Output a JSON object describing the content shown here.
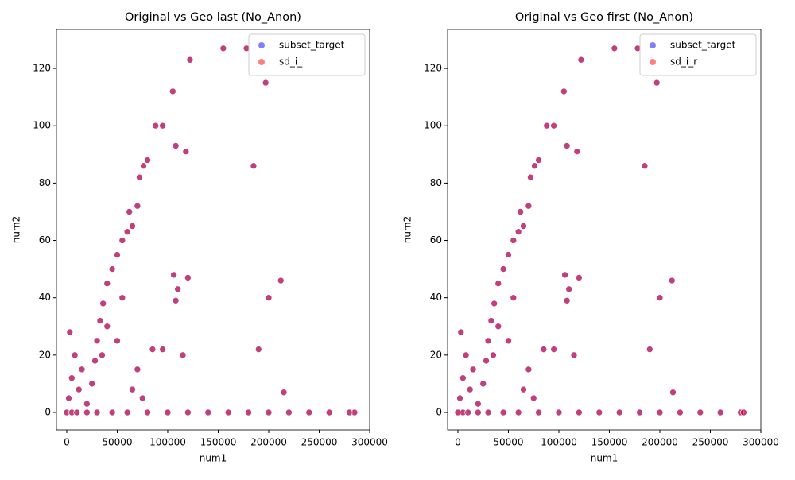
{
  "chart_data": [
    {
      "type": "scatter",
      "title": "Original vs Geo last (No_Anon)",
      "x_label": "num1",
      "y_label": "num2",
      "xlim": [
        -10200,
        300000
      ],
      "ylim": [
        -6.1,
        133.6
      ],
      "xticks": [
        0,
        50000,
        100000,
        150000,
        200000,
        250000,
        300000
      ],
      "yticks": [
        0,
        20,
        40,
        60,
        80,
        100,
        120
      ],
      "legend": "upper right",
      "series": [
        {
          "name": "subset_target",
          "color": "#0000ff",
          "x": [
            0,
            5000,
            10000,
            20000,
            30000,
            45000,
            60000,
            80000,
            100000,
            120000,
            140000,
            160000,
            180000,
            200000,
            220000,
            240000,
            260000,
            280000,
            285000,
            2000,
            5000,
            8000,
            3000,
            12000,
            15000,
            20000,
            25000,
            28000,
            30000,
            33000,
            36000,
            40000,
            45000,
            50000,
            55000,
            60000,
            65000,
            62000,
            70000,
            72000,
            76000,
            80000,
            88000,
            95000,
            105000,
            108000,
            118000,
            122000,
            155000,
            178000,
            197000,
            185000,
            106000,
            110000,
            120000,
            108000,
            212000,
            200000,
            190000,
            215000,
            85000,
            95000,
            115000,
            65000,
            70000,
            75000,
            40000,
            35000,
            50000,
            55000
          ],
          "values": [
            0,
            0,
            0,
            0,
            0,
            0,
            0,
            0,
            0,
            0,
            0,
            0,
            0,
            0,
            0,
            0,
            0,
            0,
            0,
            5,
            12,
            20,
            28,
            8,
            15,
            3,
            10,
            18,
            25,
            32,
            38,
            45,
            50,
            55,
            60,
            63,
            65,
            70,
            72,
            82,
            86,
            88,
            100,
            100,
            112,
            93,
            91,
            123,
            127,
            127,
            115,
            86,
            48,
            43,
            47,
            39,
            46,
            40,
            22,
            7,
            22,
            22,
            20,
            8,
            15,
            5,
            30,
            20,
            25,
            40
          ]
        },
        {
          "name": "sd_i_",
          "color": "#ff0000",
          "x": [
            0,
            5000,
            10000,
            20000,
            30000,
            45000,
            60000,
            80000,
            100000,
            120000,
            140000,
            160000,
            180000,
            200000,
            220000,
            240000,
            260000,
            280000,
            285000,
            2000,
            5000,
            8000,
            3000,
            12000,
            15000,
            20000,
            25000,
            28000,
            30000,
            33000,
            36000,
            40000,
            45000,
            50000,
            55000,
            60000,
            65000,
            62000,
            70000,
            72000,
            76000,
            80000,
            88000,
            95000,
            105000,
            108000,
            118000,
            122000,
            155000,
            178000,
            197000,
            185000,
            106000,
            110000,
            120000,
            108000,
            212000,
            200000,
            190000,
            215000,
            85000,
            95000,
            115000,
            65000,
            70000,
            75000,
            40000,
            35000,
            50000,
            55000
          ],
          "values": [
            0,
            0,
            0,
            0,
            0,
            0,
            0,
            0,
            0,
            0,
            0,
            0,
            0,
            0,
            0,
            0,
            0,
            0,
            0,
            5,
            12,
            20,
            28,
            8,
            15,
            3,
            10,
            18,
            25,
            32,
            38,
            45,
            50,
            55,
            60,
            63,
            65,
            70,
            72,
            82,
            86,
            88,
            100,
            100,
            112,
            93,
            91,
            123,
            127,
            127,
            115,
            86,
            48,
            43,
            47,
            39,
            46,
            40,
            22,
            7,
            22,
            22,
            20,
            8,
            15,
            5,
            30,
            20,
            25,
            40
          ]
        }
      ]
    },
    {
      "type": "scatter",
      "title": "Original vs Geo first (No_Anon)",
      "x_label": "num1",
      "y_label": "num2",
      "xlim": [
        -10200,
        300000
      ],
      "ylim": [
        -6.1,
        133.6
      ],
      "xticks": [
        0,
        50000,
        100000,
        150000,
        200000,
        250000,
        300000
      ],
      "yticks": [
        0,
        20,
        40,
        60,
        80,
        100,
        120
      ],
      "legend": "upper right",
      "series": [
        {
          "name": "subset_target",
          "color": "#0000ff",
          "x": [
            0,
            5000,
            10000,
            20000,
            30000,
            45000,
            60000,
            80000,
            100000,
            120000,
            140000,
            160000,
            180000,
            200000,
            220000,
            240000,
            260000,
            280000,
            283000,
            2000,
            5000,
            8000,
            3000,
            12000,
            15000,
            20000,
            25000,
            28000,
            30000,
            33000,
            36000,
            40000,
            45000,
            50000,
            55000,
            60000,
            65000,
            62000,
            70000,
            72000,
            76000,
            80000,
            88000,
            95000,
            105000,
            108000,
            118000,
            122000,
            155000,
            178000,
            197000,
            185000,
            106000,
            110000,
            120000,
            108000,
            212000,
            200000,
            190000,
            213000,
            85000,
            95000,
            115000,
            65000,
            70000,
            75000,
            40000,
            35000,
            50000,
            55000
          ],
          "values": [
            0,
            0,
            0,
            0,
            0,
            0,
            0,
            0,
            0,
            0,
            0,
            0,
            0,
            0,
            0,
            0,
            0,
            0,
            0,
            5,
            12,
            20,
            28,
            8,
            15,
            3,
            10,
            18,
            25,
            32,
            38,
            45,
            50,
            55,
            60,
            63,
            65,
            70,
            72,
            82,
            86,
            88,
            100,
            100,
            112,
            93,
            91,
            123,
            127,
            127,
            115,
            86,
            48,
            43,
            47,
            39,
            46,
            40,
            22,
            7,
            22,
            22,
            20,
            8,
            15,
            5,
            30,
            20,
            25,
            40
          ]
        },
        {
          "name": "sd_i_r",
          "color": "#ff0000",
          "x": [
            0,
            5000,
            10000,
            20000,
            30000,
            45000,
            60000,
            80000,
            100000,
            120000,
            140000,
            160000,
            180000,
            200000,
            220000,
            240000,
            260000,
            280000,
            283000,
            2000,
            5000,
            8000,
            3000,
            12000,
            15000,
            20000,
            25000,
            28000,
            30000,
            33000,
            36000,
            40000,
            45000,
            50000,
            55000,
            60000,
            65000,
            62000,
            70000,
            72000,
            76000,
            80000,
            88000,
            95000,
            105000,
            108000,
            118000,
            122000,
            155000,
            178000,
            197000,
            185000,
            106000,
            110000,
            120000,
            108000,
            212000,
            200000,
            190000,
            213000,
            85000,
            95000,
            115000,
            65000,
            70000,
            75000,
            40000,
            35000,
            50000,
            55000
          ],
          "values": [
            0,
            0,
            0,
            0,
            0,
            0,
            0,
            0,
            0,
            0,
            0,
            0,
            0,
            0,
            0,
            0,
            0,
            0,
            0,
            5,
            12,
            20,
            28,
            8,
            15,
            3,
            10,
            18,
            25,
            32,
            38,
            45,
            50,
            55,
            60,
            63,
            65,
            70,
            72,
            82,
            86,
            88,
            100,
            100,
            112,
            93,
            91,
            123,
            127,
            127,
            115,
            86,
            48,
            43,
            47,
            39,
            46,
            40,
            22,
            7,
            22,
            22,
            20,
            8,
            15,
            5,
            30,
            20,
            25,
            40
          ]
        }
      ]
    }
  ]
}
